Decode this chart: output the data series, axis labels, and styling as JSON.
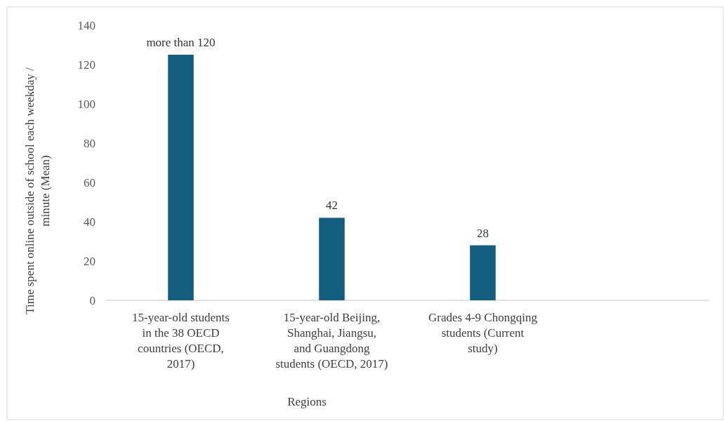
{
  "chart_data": {
    "type": "bar",
    "xlabel": "Regions",
    "ylabel": "Time spent online outside of school each weekday / minute (Mean)",
    "categories": [
      "15-year-old students in the 38 OECD countries (OECD, 2017)",
      "15-year-old Beijing, Shanghai, Jiangsu, and Guangdong students (OECD, 2017)",
      "Grades 4-9 Chongqing students (Current study)",
      null
    ],
    "values": [
      125,
      42,
      28,
      null
    ],
    "value_labels": [
      "more than 120",
      "42",
      "28",
      null
    ],
    "color": "#135e7e",
    "ylim": [
      0,
      140
    ],
    "yticks": [
      0,
      20,
      40,
      60,
      80,
      100,
      120,
      140
    ],
    "grid": false
  }
}
